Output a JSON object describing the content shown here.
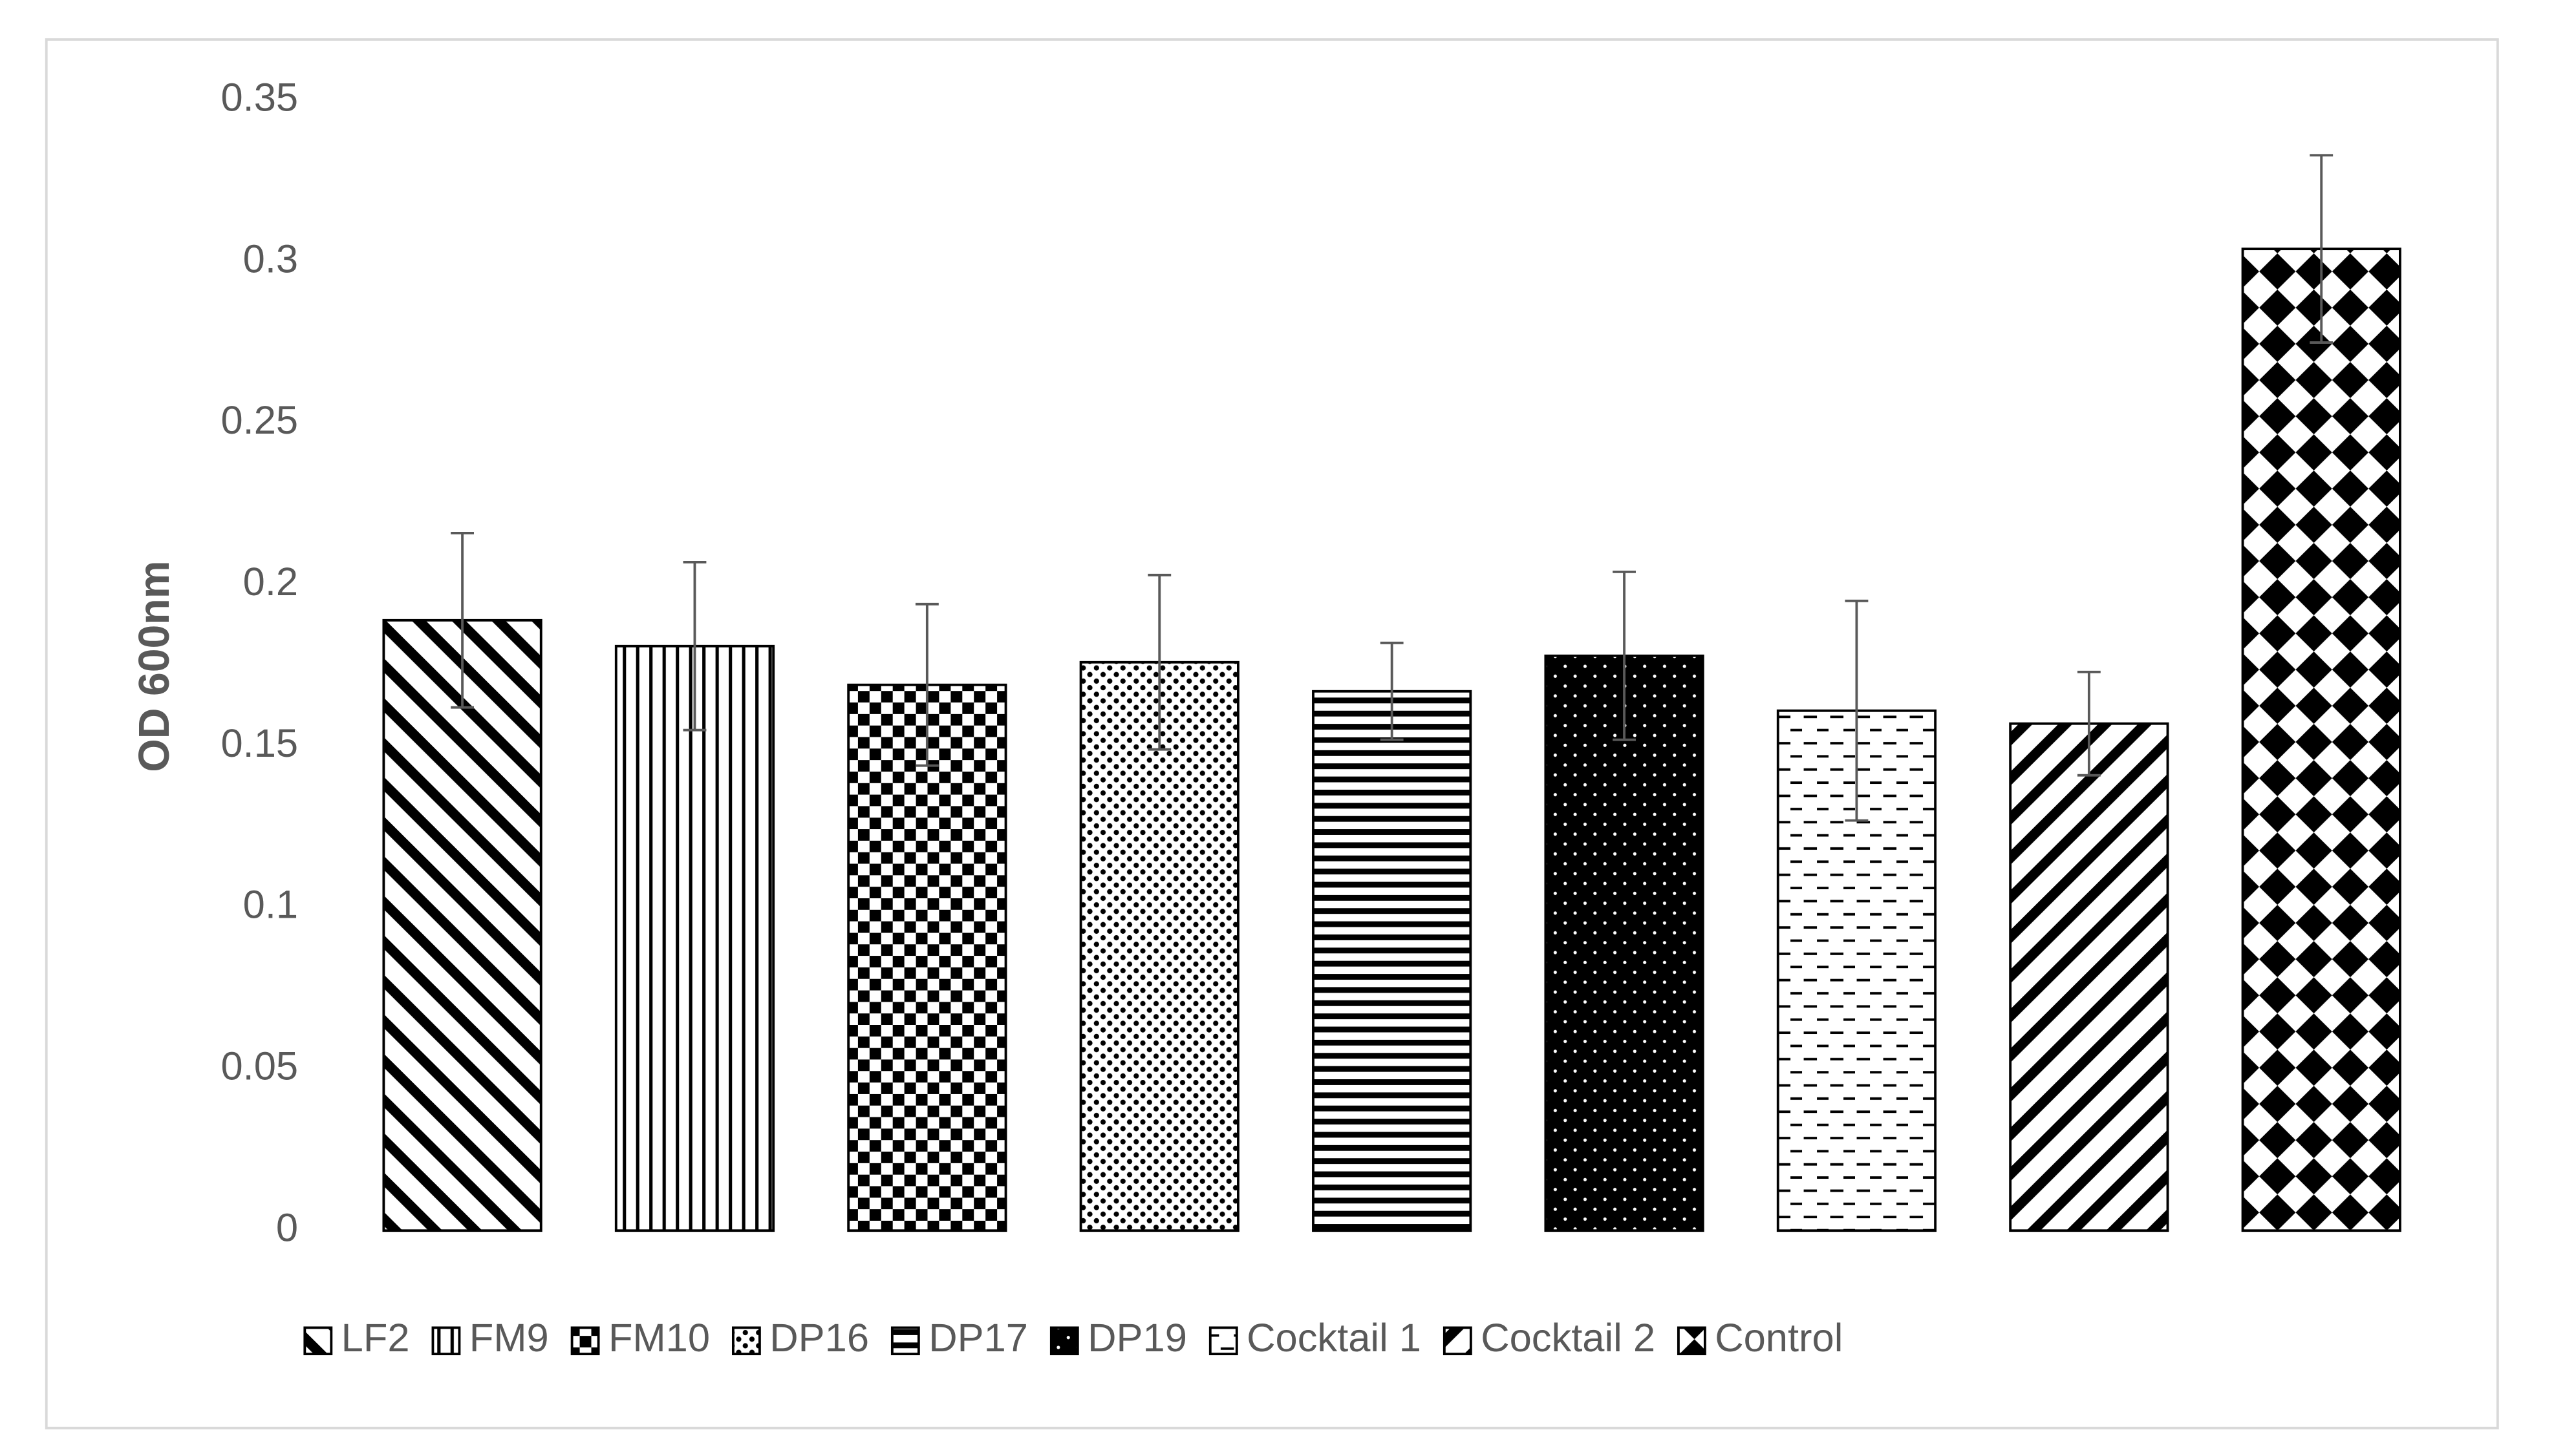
{
  "chart_data": {
    "type": "bar",
    "y_label": "OD 600nm",
    "ylim": [
      0,
      0.35
    ],
    "yticks": [
      0,
      0.05,
      0.1,
      0.15,
      0.2,
      0.25,
      0.3,
      0.35
    ],
    "grid": false,
    "legend": "bottom",
    "series": [
      {
        "name": "LF2",
        "color": "#000000",
        "pattern": "diag-down",
        "values": [
          0.189
        ],
        "errors": [
          0.027
        ]
      },
      {
        "name": "FM9",
        "color": "#000000",
        "pattern": "vertical",
        "values": [
          0.181
        ],
        "errors": [
          0.026
        ]
      },
      {
        "name": "FM10",
        "color": "#000000",
        "pattern": "checker",
        "values": [
          0.169
        ],
        "errors": [
          0.025
        ]
      },
      {
        "name": "DP16",
        "color": "#000000",
        "pattern": "dots",
        "values": [
          0.176
        ],
        "errors": [
          0.027
        ]
      },
      {
        "name": "DP17",
        "color": "#000000",
        "pattern": "horizontal",
        "values": [
          0.167
        ],
        "errors": [
          0.015
        ]
      },
      {
        "name": "DP19",
        "color": "#000000",
        "pattern": "white-dots",
        "values": [
          0.178
        ],
        "errors": [
          0.026
        ]
      },
      {
        "name": "Cocktail 1",
        "color": "#000000",
        "pattern": "dashes",
        "values": [
          0.161
        ],
        "errors": [
          0.034
        ]
      },
      {
        "name": "Cocktail 2",
        "color": "#000000",
        "pattern": "diag-up",
        "values": [
          0.157
        ],
        "errors": [
          0.016
        ]
      },
      {
        "name": "Control",
        "color": "#000000",
        "pattern": "diamonds",
        "values": [
          0.304
        ],
        "errors": [
          0.029
        ]
      }
    ]
  }
}
